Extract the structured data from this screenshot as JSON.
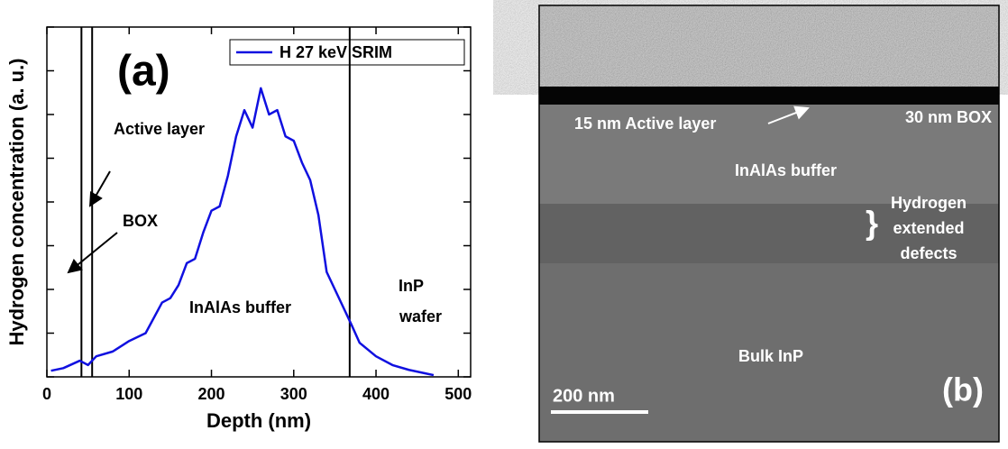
{
  "chart_data": {
    "type": "line",
    "panel_label": "(a)",
    "xlabel": "Depth (nm)",
    "ylabel": "Hydrogen concentration (a. u.)",
    "x": [
      5,
      20,
      40,
      50,
      60,
      80,
      100,
      120,
      140,
      150,
      160,
      170,
      180,
      190,
      200,
      210,
      220,
      230,
      240,
      250,
      260,
      270,
      280,
      290,
      300,
      310,
      320,
      330,
      340,
      350,
      360,
      370,
      380,
      400,
      420,
      440,
      460,
      470
    ],
    "series": [
      {
        "name": "H 27 keV SRIM",
        "color": "#1010e0",
        "values": [
          0.14,
          0.2,
          0.37,
          0.27,
          0.47,
          0.58,
          0.82,
          1.0,
          1.7,
          1.8,
          2.1,
          2.6,
          2.7,
          3.3,
          3.8,
          3.9,
          4.6,
          5.5,
          6.1,
          5.7,
          6.6,
          6.0,
          6.1,
          5.5,
          5.4,
          4.9,
          4.5,
          3.7,
          2.4,
          2.0,
          1.6,
          1.2,
          0.78,
          0.47,
          0.27,
          0.16,
          0.08,
          0.04
        ]
      }
    ],
    "xlim": [
      0,
      515
    ],
    "xticks": [
      0,
      100,
      200,
      300,
      400,
      500
    ],
    "ylim": [
      0,
      8
    ],
    "yticks": [
      0,
      1,
      2,
      3,
      4,
      5,
      6,
      7,
      8
    ],
    "vlines": [
      42,
      55,
      368
    ],
    "annotations": [
      "Active layer",
      "BOX",
      "InAlAs buffer",
      "InP",
      "wafer"
    ]
  },
  "panel_b": {
    "box": "30 nm BOX",
    "active": "15 nm Active layer",
    "buffer": "InAlAs buffer",
    "defects": [
      "Hydrogen",
      "extended",
      "defects"
    ],
    "bulk": "Bulk InP",
    "scale": "200 nm",
    "label": "(b)"
  }
}
